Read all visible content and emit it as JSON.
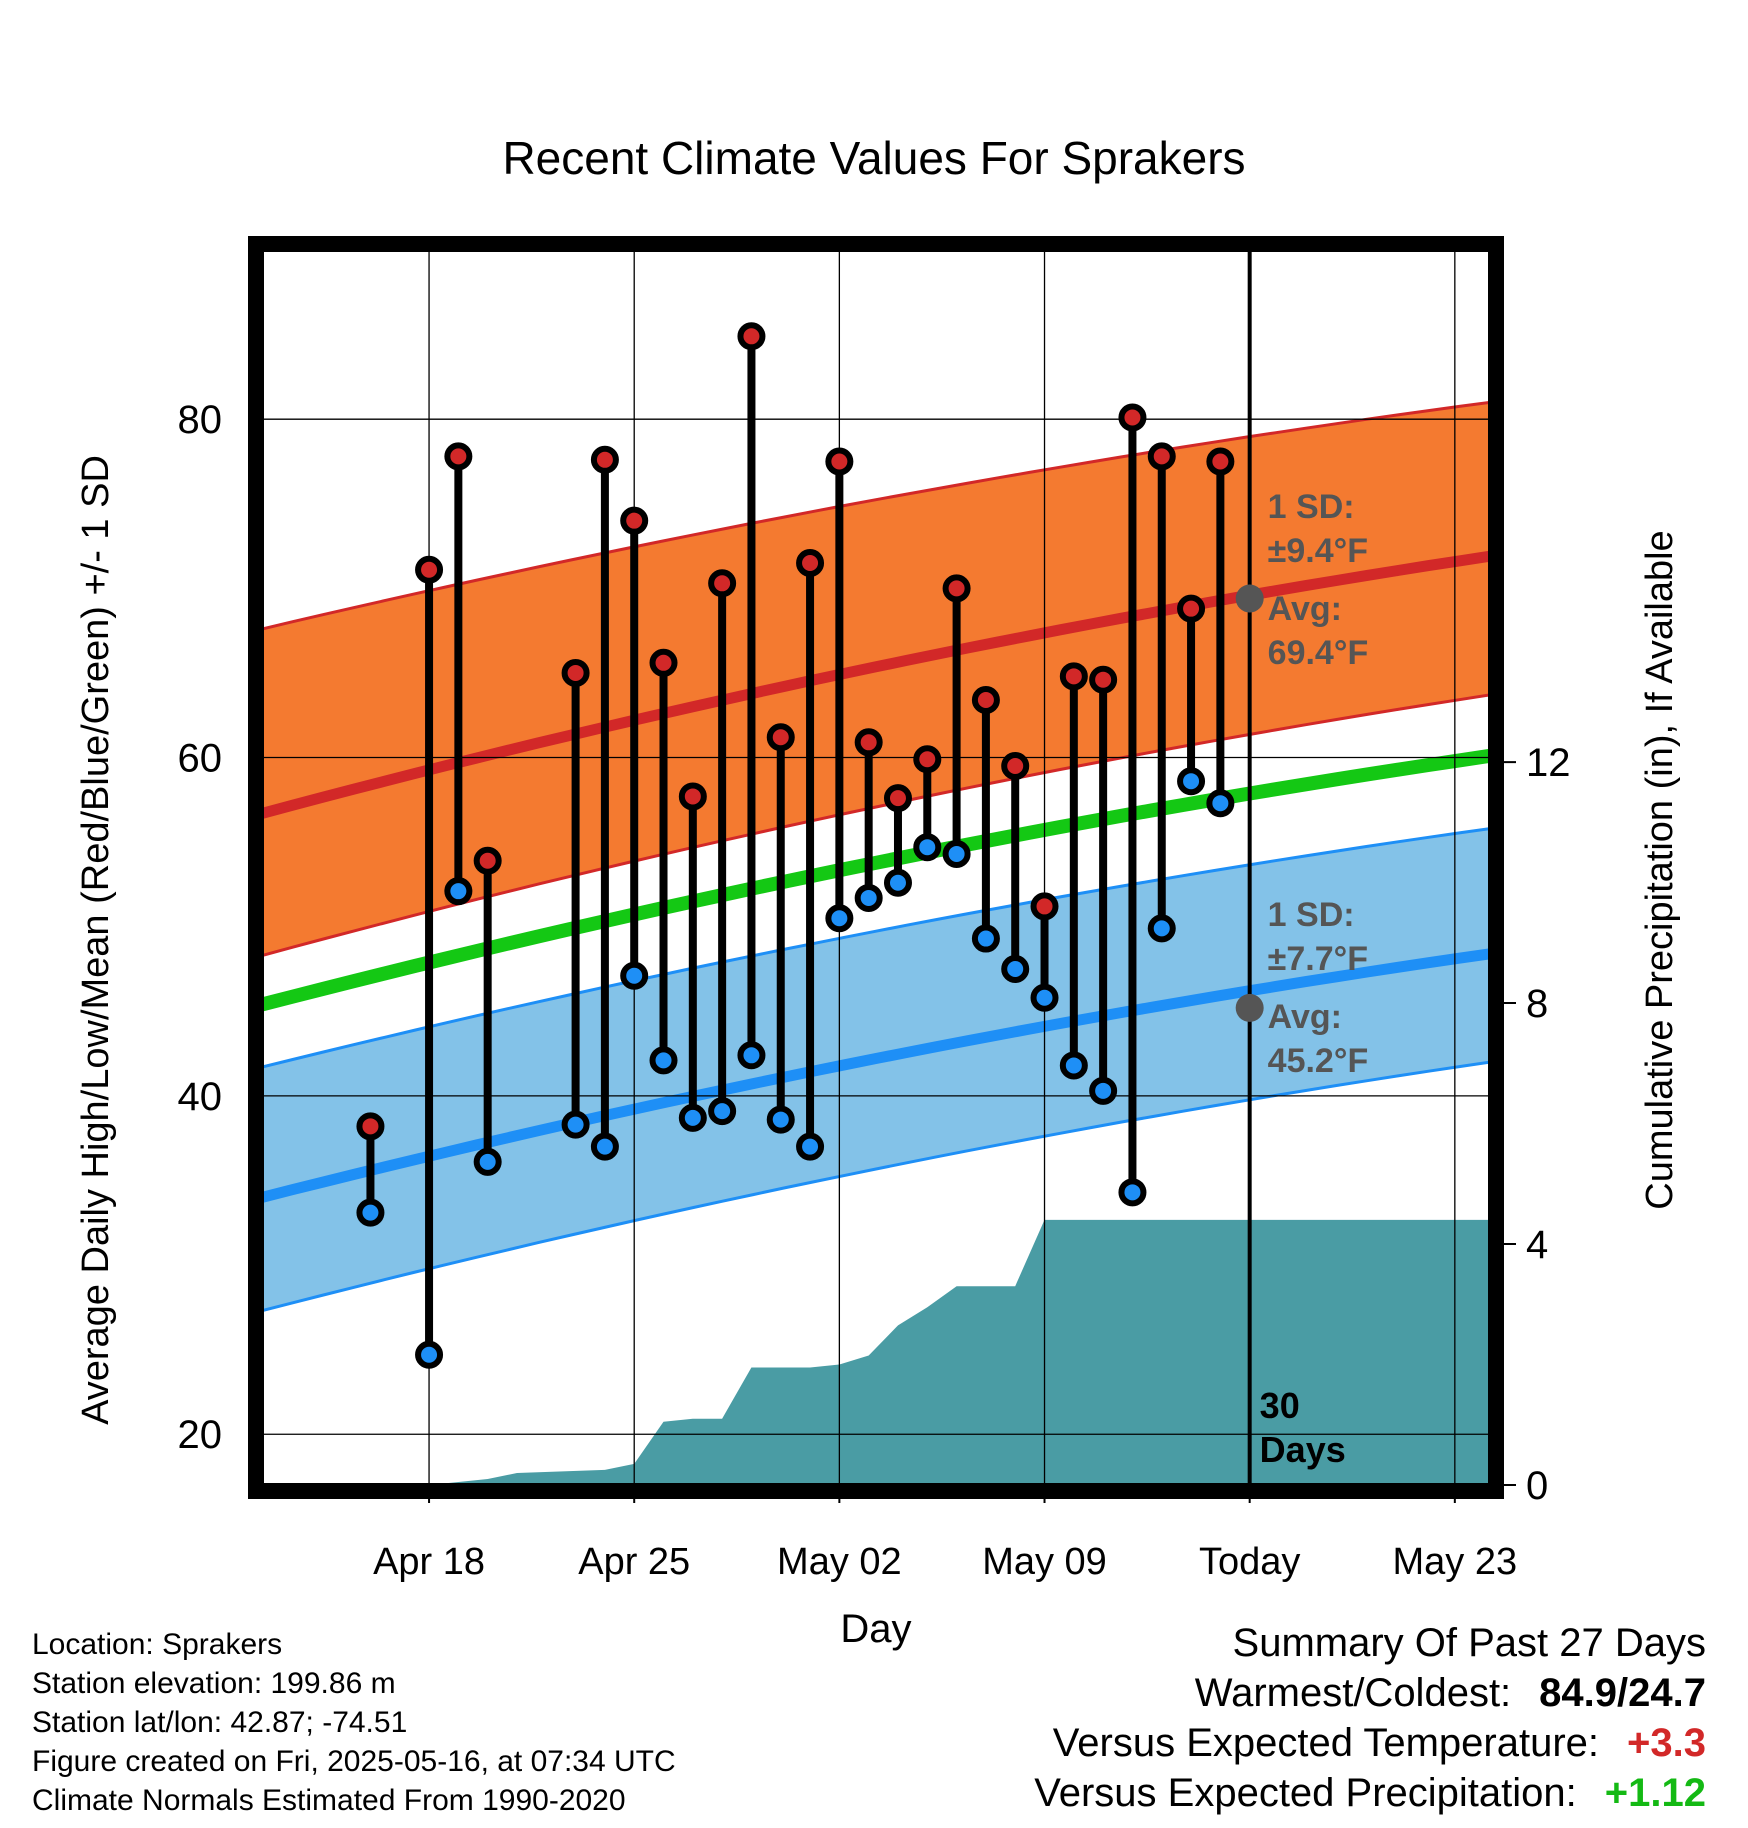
{
  "chart_data": {
    "type": "line",
    "title": "Recent Climate Values For Sprakers",
    "xlabel": "Day",
    "ylabel": "Average Daily High/Low/Mean (Red/Blue/Green) +/- 1 SD",
    "y2label": "Cumulative Precipitation (in), If Available",
    "xlim_days": [
      -33.7,
      8.2
    ],
    "ylim": [
      17,
      90
    ],
    "y2lim": [
      0,
      20.5
    ],
    "x_tick_labels": [
      {
        "label": "Apr 18",
        "day": -28
      },
      {
        "label": "Apr 25",
        "day": -21
      },
      {
        "label": "May 02",
        "day": -14
      },
      {
        "label": "May 09",
        "day": -7
      },
      {
        "label": "Today",
        "day": 0
      },
      {
        "label": "May 23",
        "day": 7
      }
    ],
    "y_ticks": [
      20,
      40,
      60,
      80
    ],
    "y2_ticks": [
      0,
      4,
      8,
      12
    ],
    "daily_observations": {
      "day": [
        -30,
        -28,
        -27,
        -26,
        -23,
        -22,
        -21,
        -20,
        -19,
        -18,
        -17,
        -16,
        -15,
        -14,
        -13,
        -12,
        -11,
        -10,
        -9,
        -8,
        -7,
        -6,
        -5,
        -4,
        -3,
        -2,
        -1
      ],
      "high": [
        38.2,
        71.1,
        77.8,
        53.9,
        65.0,
        77.6,
        74.0,
        65.6,
        57.7,
        70.3,
        84.9,
        61.2,
        71.5,
        77.5,
        60.9,
        57.6,
        59.9,
        70.0,
        63.4,
        59.5,
        51.2,
        64.8,
        64.6,
        80.1,
        77.8,
        68.8,
        77.5
      ],
      "low": [
        33.1,
        24.7,
        52.1,
        36.1,
        38.3,
        37.0,
        47.1,
        42.1,
        38.7,
        39.1,
        42.4,
        38.6,
        37.0,
        50.5,
        51.7,
        52.6,
        54.7,
        54.3,
        49.3,
        47.5,
        45.8,
        41.8,
        40.3,
        34.3,
        49.9,
        58.6,
        57.3
      ]
    },
    "normals": {
      "day": [
        -33.7,
        8.2
      ],
      "high_mean": [
        56.7,
        71.9
      ],
      "high_upper_1sd": [
        67.6,
        81.0
      ],
      "high_lower_1sd": [
        48.3,
        63.7
      ],
      "mean": [
        45.4,
        60.1
      ],
      "low_mean": [
        34.0,
        48.4
      ],
      "low_upper_1sd": [
        41.7,
        55.8
      ],
      "low_lower_1sd": [
        27.3,
        42.0
      ]
    },
    "precipitation_cumulative": {
      "day": [
        -33.7,
        -28,
        -27,
        -26,
        -25,
        -22,
        -21,
        -20,
        -19,
        -18,
        -17,
        -16,
        -15,
        -14,
        -13,
        -12,
        -11,
        -10,
        -9,
        -8,
        -7,
        -6,
        8.2
      ],
      "value": [
        0,
        0,
        0.05,
        0.1,
        0.2,
        0.25,
        0.35,
        1.05,
        1.1,
        1.1,
        1.95,
        1.95,
        1.95,
        2.0,
        2.15,
        2.65,
        2.95,
        3.3,
        3.3,
        3.3,
        4.4,
        4.4,
        4.4
      ]
    },
    "annotations": {
      "high_sd": "1 SD:",
      "high_sd_value": "±9.4°F",
      "high_avg": "Avg:",
      "high_avg_value": "69.4°F",
      "low_sd": "1 SD:",
      "low_sd_value": "±7.7°F",
      "low_avg": "Avg:",
      "low_avg_value": "45.2°F",
      "window_days": "30",
      "window_days_unit": "Days"
    },
    "colors": {
      "high_band": "#F47A30",
      "high_line": "#D22828",
      "low_band": "#83C2E8",
      "low_line": "#1E8FF6",
      "mean_line": "#14C814",
      "precip_fill": "#4A9CA4",
      "annotation_text": "#555555",
      "warm_anomaly": "#D22828",
      "wet_anomaly": "#14B914"
    },
    "grid": true
  },
  "footer": {
    "location": "Location: Sprakers",
    "elevation": "Station elevation: 199.86 m",
    "latlon": "Station lat/lon: 42.87; -74.51",
    "created": "Figure created on Fri, 2025-05-16, at 07:34 UTC",
    "normals": "Climate Normals Estimated From 1990-2020"
  },
  "summary": {
    "title": "Summary Of Past 27 Days",
    "warmest_coldest_label": "Warmest/Coldest:",
    "warmest_coldest_value": "84.9/24.7",
    "temp_label": "Versus Expected Temperature:",
    "temp_value": "+3.3",
    "precip_label": "Versus Expected Precipitation:",
    "precip_value": "+1.12"
  }
}
